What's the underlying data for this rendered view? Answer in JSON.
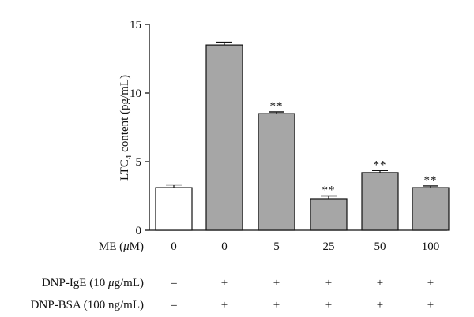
{
  "chart_data": {
    "type": "bar",
    "ylabel": "LTC",
    "ylabel_sub": "4",
    "ylabel_suffix": " content (pg/mL)",
    "ylim": [
      0,
      15
    ],
    "yticks": [
      0,
      5,
      10,
      15
    ],
    "grid": false,
    "values": [
      3.1,
      13.5,
      8.5,
      2.3,
      4.2,
      3.1
    ],
    "errors": [
      0.2,
      0.2,
      0.12,
      0.2,
      0.15,
      0.12
    ],
    "fills": [
      "#ffffff",
      "#a6a6a6",
      "#a6a6a6",
      "#a6a6a6",
      "#a6a6a6",
      "#a6a6a6"
    ],
    "significance": [
      "",
      "",
      "**",
      "**",
      "**",
      "**"
    ],
    "conditions": [
      {
        "label": "ME (",
        "label_unit_mu": "μ",
        "label_tail": "M)",
        "values": [
          "0",
          "0",
          "5",
          "25",
          "50",
          "100"
        ]
      },
      {
        "label": "DNP-IgE (10 ",
        "label_unit_mu": "μ",
        "label_tail": "g/mL)",
        "values": [
          "–",
          "+",
          "+",
          "+",
          "+",
          "+"
        ]
      },
      {
        "label": "DNP-BSA (100 ng/mL)",
        "label_unit_mu": "",
        "label_tail": "",
        "values": [
          "–",
          "+",
          "+",
          "+",
          "+",
          "+"
        ]
      }
    ]
  }
}
